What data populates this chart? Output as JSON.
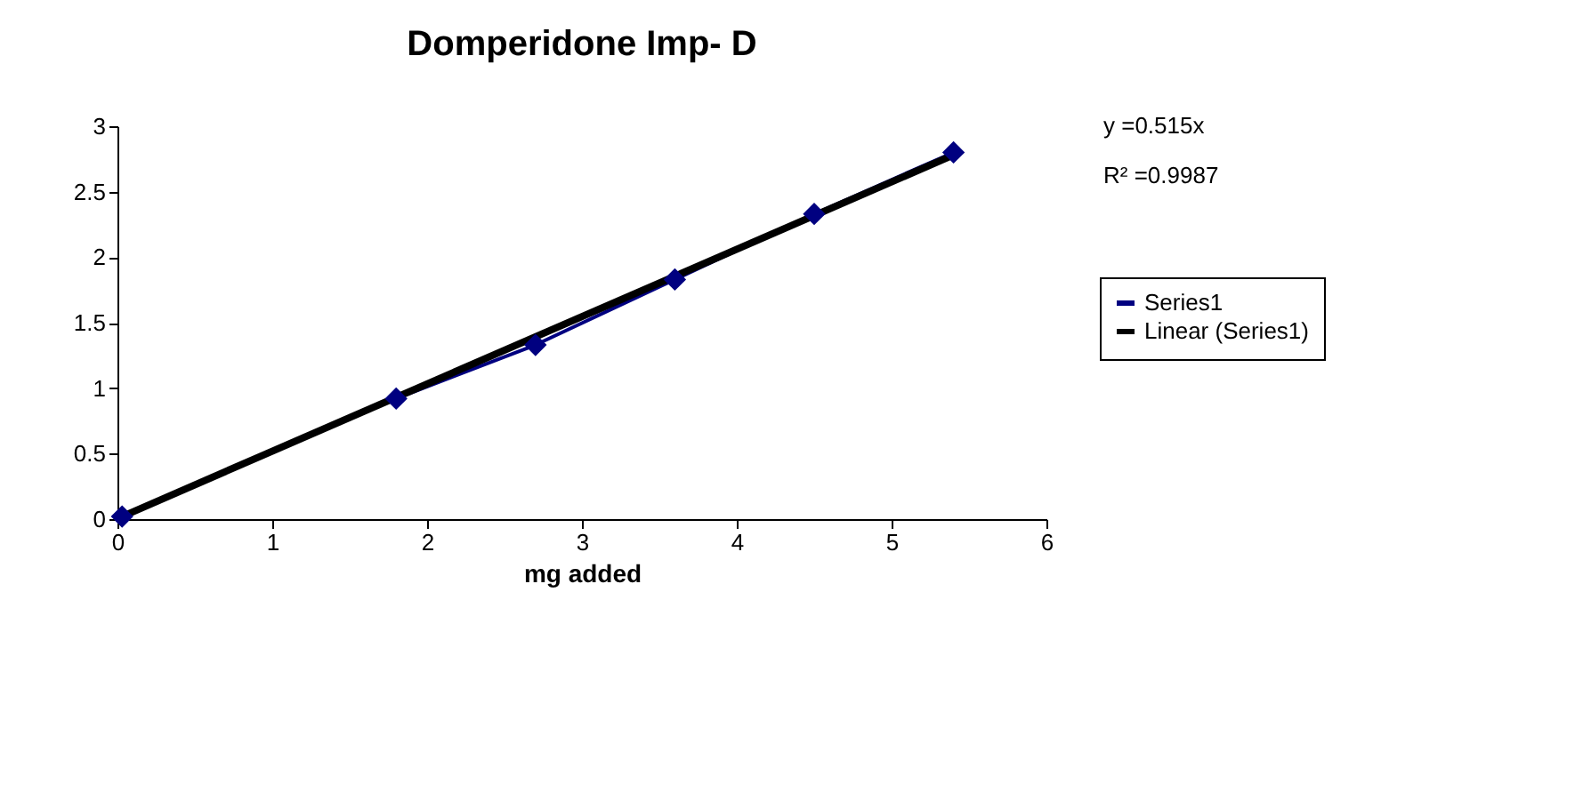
{
  "chart_data": {
    "type": "line",
    "title": "Domperidone Imp- D",
    "xlabel": "mg added",
    "series": [
      {
        "name": "Series1",
        "color": "#000080",
        "marker": "diamond",
        "x": [
          0.03,
          1.8,
          2.7,
          3.6,
          4.5,
          5.4
        ],
        "values": [
          0.02,
          0.92,
          1.33,
          1.83,
          2.33,
          2.8
        ]
      },
      {
        "name": "Linear (Series1)",
        "color": "#000000",
        "marker": "none",
        "x": [
          0.03,
          5.4
        ],
        "values": [
          0.02,
          2.78
        ]
      }
    ],
    "xlim": [
      0,
      6
    ],
    "xticks": [
      0,
      1,
      2,
      3,
      4,
      5,
      6
    ],
    "ylim": [
      0,
      3
    ],
    "yticks": [
      0,
      0.5,
      1,
      1.5,
      2,
      2.5,
      3
    ],
    "grid": false,
    "legend": "right",
    "annotations": [
      "y =0.515x",
      "R² =0.9987"
    ]
  }
}
